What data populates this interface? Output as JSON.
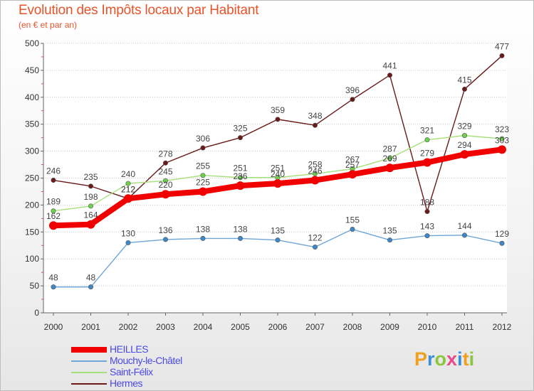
{
  "title": "Evolution des Impôts locaux par Habitant",
  "subtitle": "(en € et par an)",
  "logo": {
    "text": "Proxiti",
    "letters": [
      "P",
      "r",
      "o",
      "x",
      "i",
      "t",
      "i"
    ],
    "colors": [
      "#f0a020",
      "#3a8fd8",
      "#8cc63f",
      "#e84a8a",
      "#3a8fd8",
      "#f0a020",
      "#8cc63f"
    ]
  },
  "chart_data": {
    "type": "line",
    "title": "Evolution des Impôts locaux par Habitant",
    "subtitle": "(en € et par an)",
    "xlabel": "",
    "ylabel": "",
    "categories": [
      "2000",
      "2001",
      "2002",
      "2003",
      "2004",
      "2005",
      "2006",
      "2007",
      "2008",
      "2009",
      "2010",
      "2011",
      "2012"
    ],
    "yticks": [
      0,
      50,
      100,
      150,
      200,
      250,
      300,
      350,
      400,
      450,
      500
    ],
    "ylim": [
      0,
      500
    ],
    "grid": "horizontal-dotted",
    "legend_position": "bottom-left",
    "series": [
      {
        "name": "Hermes",
        "color": "#6b1a1a",
        "marker_color": "#6b1a1a",
        "values": [
          246,
          235,
          212,
          278,
          306,
          325,
          359,
          348,
          396,
          441,
          188,
          415,
          477
        ]
      },
      {
        "name": "Saint-Félix",
        "color": "#a6e07a",
        "marker_color": "#6cd14c",
        "values": [
          189,
          198,
          240,
          245,
          255,
          251,
          251,
          258,
          267,
          287,
          321,
          329,
          323
        ]
      },
      {
        "name": "Mouchy-le-Châtel",
        "color": "#6fa6d6",
        "marker_color": "#3f88c8",
        "values": [
          48,
          48,
          130,
          136,
          138,
          138,
          135,
          122,
          155,
          135,
          143,
          144,
          129
        ]
      },
      {
        "name": "HEILLES",
        "color": "#f00000",
        "marker_color": "#f00000",
        "values": [
          162,
          164,
          212,
          220,
          225,
          236,
          240,
          246,
          257,
          269,
          279,
          294,
          303
        ]
      }
    ],
    "legend_order": [
      "HEILLES",
      "Mouchy-le-Châtel",
      "Saint-Félix",
      "Hermes"
    ]
  }
}
